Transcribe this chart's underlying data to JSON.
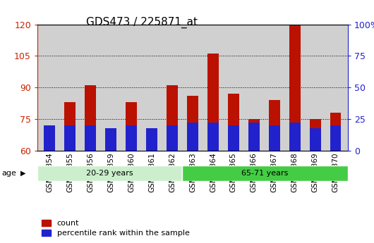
{
  "title": "GDS473 / 225871_at",
  "categories": [
    "GSM10354",
    "GSM10355",
    "GSM10356",
    "GSM10359",
    "GSM10360",
    "GSM10361",
    "GSM10362",
    "GSM10363",
    "GSM10364",
    "GSM10365",
    "GSM10366",
    "GSM10367",
    "GSM10368",
    "GSM10369",
    "GSM10370"
  ],
  "count_values": [
    68,
    83,
    91,
    70,
    83,
    68,
    91,
    86,
    106,
    87,
    75,
    84,
    120,
    75,
    78
  ],
  "percentile_values": [
    20,
    20,
    20,
    18,
    20,
    18,
    20,
    22,
    22,
    20,
    22,
    20,
    22,
    18,
    20
  ],
  "bar_base": 60,
  "ylim_left": [
    60,
    120
  ],
  "ylim_right": [
    0,
    100
  ],
  "yticks_left": [
    60,
    75,
    90,
    105,
    120
  ],
  "yticks_right": [
    0,
    25,
    50,
    75,
    100
  ],
  "yticklabels_right": [
    "0",
    "25",
    "50",
    "75",
    "100%"
  ],
  "group1_label": "20-29 years",
  "group2_label": "65-71 years",
  "group1_count": 7,
  "group2_count": 8,
  "age_label": "age",
  "legend1_label": "count",
  "legend2_label": "percentile rank within the sample",
  "bar_color_red": "#bb1100",
  "bar_color_blue": "#2222cc",
  "group1_color": "#cceecc",
  "group2_color": "#44cc44",
  "bar_width": 0.55,
  "plot_bg": "#d0d0d0",
  "title_fontsize": 11,
  "tick_label_fontsize": 7.5,
  "axis_color_left": "#cc2200",
  "axis_color_right": "#2222cc"
}
